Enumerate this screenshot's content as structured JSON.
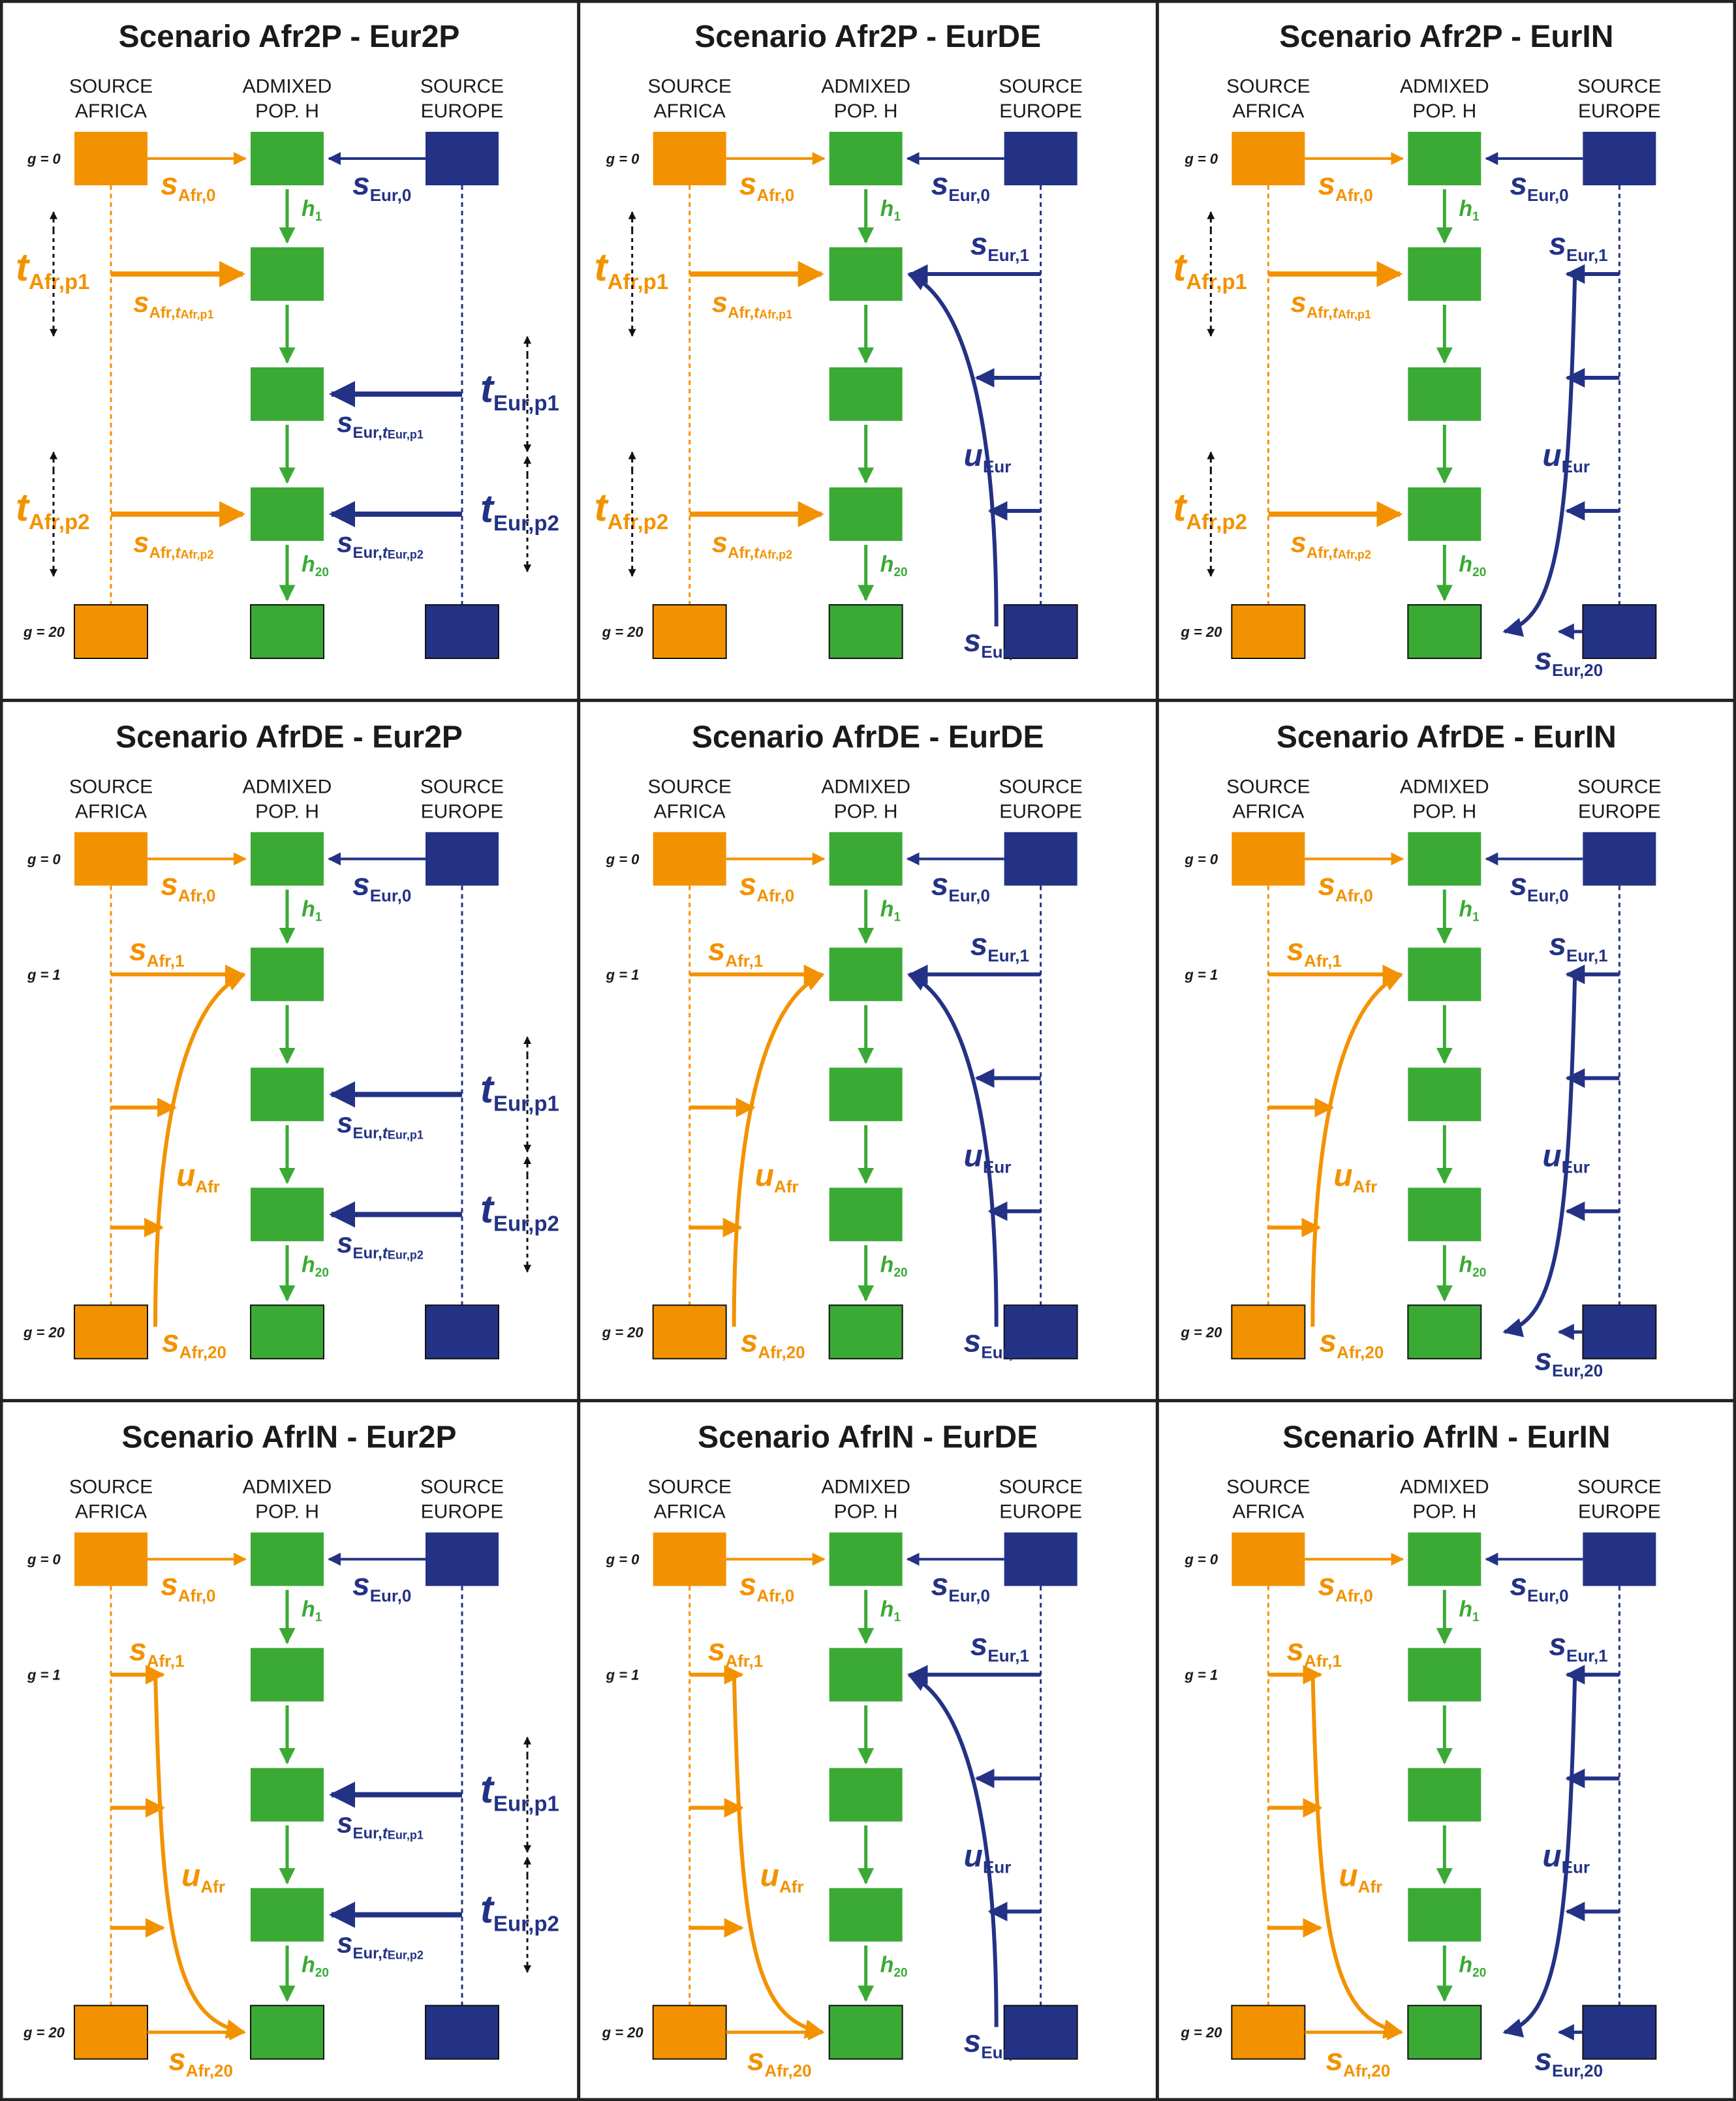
{
  "colors": {
    "africa": "#f39200",
    "europe": "#233285",
    "admixed": "#3aaa35",
    "frame": "#222222",
    "text": "#1a1a1a"
  },
  "labels": {
    "source_africa": [
      "SOURCE",
      "AFRICA"
    ],
    "admixed": [
      "ADMIXED",
      "POP. H"
    ],
    "source_europe": [
      "SOURCE",
      "EUROPE"
    ],
    "g0": "g = 0",
    "g1": "g = 1",
    "g20": "g = 20"
  },
  "symbols": {
    "s": "s",
    "t": "t",
    "u": "u",
    "h": "h",
    "Afr0": "Afr,0",
    "Afr1": "Afr,1",
    "Afr20": "Afr,20",
    "Eur0": "Eur,0",
    "Eur1": "Eur,1",
    "Eur20": "Eur,20",
    "Afr": "Afr",
    "Eur": "Eur",
    "Afrp1": "Afr,p1",
    "Afrp2": "Afr,p2",
    "Eurp1": "Eur,p1",
    "Eurp2": "Eur,p2",
    "AfrComma": "Afr,",
    "EurComma": "Eur,",
    "h1": "1",
    "h20": "20"
  },
  "panels": [
    {
      "title": "Scenario Afr2P - Eur2P",
      "afr": "2P",
      "eur": "2P"
    },
    {
      "title": "Scenario Afr2P - EurDE",
      "afr": "2P",
      "eur": "DE"
    },
    {
      "title": "Scenario Afr2P - EurIN",
      "afr": "2P",
      "eur": "IN"
    },
    {
      "title": "Scenario AfrDE - Eur2P",
      "afr": "DE",
      "eur": "2P"
    },
    {
      "title": "Scenario AfrDE - EurDE",
      "afr": "DE",
      "eur": "DE"
    },
    {
      "title": "Scenario AfrDE - EurIN",
      "afr": "DE",
      "eur": "IN"
    },
    {
      "title": "Scenario AfrIN - Eur2P",
      "afr": "IN",
      "eur": "2P"
    },
    {
      "title": "Scenario AfrIN - EurDE",
      "afr": "IN",
      "eur": "DE"
    },
    {
      "title": "Scenario AfrIN - EurIN",
      "afr": "IN",
      "eur": "IN"
    }
  ]
}
